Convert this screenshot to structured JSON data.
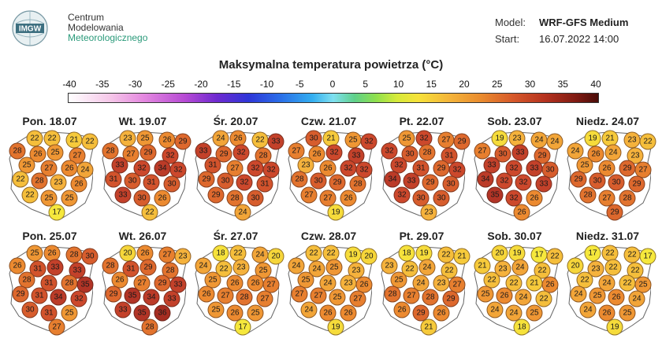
{
  "logo": {
    "badge_text": "IMGW",
    "line1": "Centrum",
    "line2": "Modelowania",
    "line3": "Meteorologicznego"
  },
  "meta": {
    "model_label": "Model:",
    "model_value": "WRF-GFS Medium",
    "start_label": "Start:",
    "start_value": "16.07.2022 14:00"
  },
  "title": "Maksymalna temperatura powietrza (°C)",
  "scale": {
    "ticks": [
      "-40",
      "-35",
      "-30",
      "-25",
      "-20",
      "-15",
      "-10",
      "-5",
      "0",
      "5",
      "10",
      "15",
      "20",
      "25",
      "30",
      "35",
      "40"
    ]
  },
  "days": [
    {
      "label": "Pon. 18.07",
      "values": [
        22,
        22,
        21,
        22,
        28,
        26,
        25,
        27,
        25,
        27,
        26,
        24,
        22,
        28,
        23,
        26,
        22,
        25,
        25,
        17
      ]
    },
    {
      "label": "Wt. 19.07",
      "values": [
        23,
        25,
        26,
        29,
        28,
        27,
        29,
        32,
        33,
        32,
        34,
        32,
        31,
        30,
        31,
        30,
        33,
        30,
        26,
        22
      ]
    },
    {
      "label": "Śr. 20.07",
      "values": [
        24,
        26,
        22,
        33,
        33,
        29,
        32,
        28,
        31,
        27,
        32,
        32,
        29,
        30,
        32,
        31,
        29,
        28,
        30,
        24
      ]
    },
    {
      "label": "Czw. 21.07",
      "values": [
        30,
        21,
        25,
        32,
        27,
        26,
        32,
        33,
        23,
        26,
        32,
        32,
        28,
        30,
        29,
        28,
        27,
        27,
        26,
        19
      ]
    },
    {
      "label": "Pt. 22.07",
      "values": [
        25,
        32,
        27,
        29,
        32,
        30,
        28,
        31,
        32,
        31,
        29,
        32,
        34,
        33,
        29,
        30,
        32,
        30,
        30,
        23
      ]
    },
    {
      "label": "Sob. 23.07",
      "values": [
        19,
        23,
        24,
        24,
        27,
        30,
        33,
        29,
        33,
        32,
        33,
        30,
        34,
        32,
        32,
        33,
        35,
        32,
        26,
        26
      ]
    },
    {
      "label": "Niedz. 24.07",
      "values": [
        19,
        21,
        23,
        22,
        24,
        26,
        24,
        23,
        25,
        26,
        29,
        27,
        29,
        30,
        30,
        29,
        28,
        27,
        28,
        29
      ]
    },
    {
      "label": "Pon. 25.07",
      "values": [
        25,
        26,
        28,
        30,
        26,
        31,
        33,
        33,
        28,
        31,
        28,
        35,
        29,
        31,
        34,
        32,
        30,
        31,
        25,
        27
      ]
    },
    {
      "label": "Wt. 26.07",
      "values": [
        20,
        26,
        27,
        23,
        28,
        31,
        29,
        28,
        26,
        27,
        29,
        33,
        29,
        35,
        34,
        33,
        33,
        35,
        36,
        28
      ]
    },
    {
      "label": "Śr. 27.07",
      "values": [
        18,
        22,
        24,
        20,
        24,
        22,
        23,
        25,
        25,
        26,
        26,
        27,
        26,
        27,
        28,
        27,
        25,
        26,
        25,
        17
      ]
    },
    {
      "label": "Czw. 28.07",
      "values": [
        22,
        22,
        19,
        20,
        24,
        24,
        25,
        23,
        25,
        24,
        23,
        26,
        27,
        27,
        25,
        27,
        24,
        26,
        26,
        19
      ]
    },
    {
      "label": "Pt. 29.07",
      "values": [
        18,
        19,
        22,
        21,
        23,
        22,
        24,
        22,
        25,
        24,
        23,
        27,
        28,
        27,
        28,
        29,
        26,
        29,
        26,
        21
      ]
    },
    {
      "label": "Sob. 30.07",
      "values": [
        20,
        19,
        17,
        22,
        21,
        23,
        24,
        22,
        22,
        22,
        21,
        26,
        25,
        26,
        24,
        22,
        24,
        24,
        25,
        18
      ]
    },
    {
      "label": "Niedz. 31.07",
      "values": [
        17,
        22,
        22,
        17,
        20,
        23,
        22,
        22,
        22,
        24,
        22,
        25,
        24,
        25,
        26,
        24,
        24,
        26,
        25,
        19
      ]
    }
  ]
}
